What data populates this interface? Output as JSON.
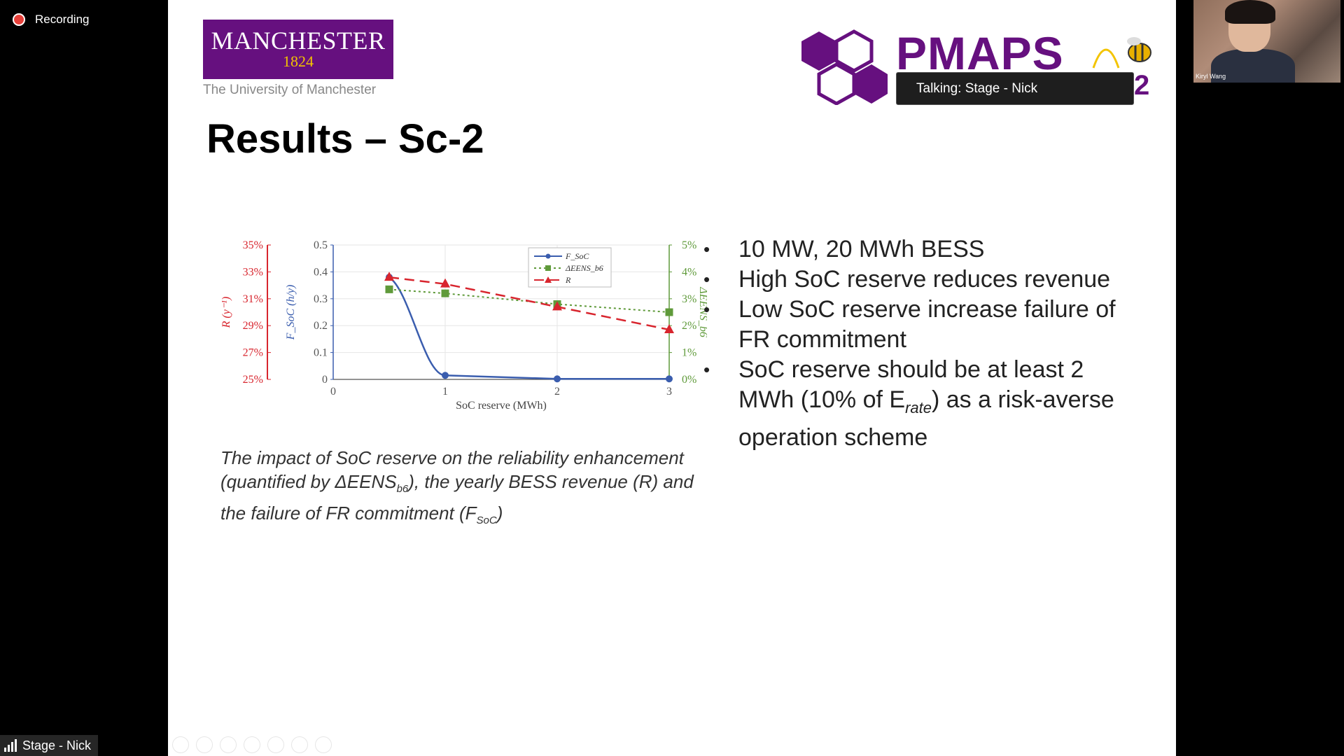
{
  "app": {
    "recording_label": "Recording",
    "speaker_label": "Stage - Nick",
    "talking_tooltip": "Talking: Stage - Nick",
    "webcam_name": "Kiryl Wang"
  },
  "slide": {
    "university_logo_name": "MANCHESTER",
    "university_logo_year": "1824",
    "university_subtitle": "The University of Manchester",
    "conference_logo": "PMAPS",
    "conference_logo_suffix": "2",
    "title": "Results – Sc-2",
    "caption_part1": "The impact of SoC reserve on the reliability enhancement (quantified by ΔEENS",
    "caption_sub1": "b6",
    "caption_part2": "), the yearly BESS revenue (R) and the failure of FR commitment (F",
    "caption_sub2": "SoC",
    "caption_part3": ")",
    "bullets": [
      {
        "text": "10 MW, 20 MWh BESS"
      },
      {
        "text": "High SoC reserve reduces revenue"
      },
      {
        "text": "Low SoC reserve increase failure of FR commitment"
      },
      {
        "text_pre": "SoC reserve should be at least 2 MWh (10% of E",
        "sub": "rate",
        "text_post": ") as a risk-averse operation scheme"
      }
    ]
  },
  "chart_data": {
    "type": "line",
    "xlabel": "SoC reserve (MWh)",
    "x_ticks": [
      "0",
      "1",
      "2",
      "3"
    ],
    "xlim": [
      0,
      3
    ],
    "axes": {
      "R": {
        "label": "R (y⁻¹)",
        "ticks": [
          "25%",
          "27%",
          "29%",
          "31%",
          "33%",
          "35%"
        ],
        "range": [
          25,
          35
        ],
        "color": "#d8252e"
      },
      "F": {
        "label": "F_SoC (h/y)",
        "ticks": [
          "0",
          "0.1",
          "0.2",
          "0.3",
          "0.4",
          "0.5"
        ],
        "range": [
          0,
          0.5
        ],
        "color": "#3a5dae"
      },
      "E": {
        "label": "ΔEENS_b6",
        "ticks": [
          "0%",
          "1%",
          "2%",
          "3%",
          "4%",
          "5%"
        ],
        "range": [
          0,
          5
        ],
        "color": "#5f9a3a"
      }
    },
    "legend": [
      "F_SoC",
      "ΔEENS_b6",
      "R"
    ],
    "legend_position": "top-right",
    "series": [
      {
        "name": "F_SoC",
        "axis": "F",
        "x": [
          0.5,
          1,
          2,
          3
        ],
        "y": [
          0.38,
          0.015,
          0.002,
          0.002
        ]
      },
      {
        "name": "ΔEENS_b6",
        "axis": "E",
        "x": [
          0.5,
          1,
          2,
          3
        ],
        "y": [
          3.35,
          3.2,
          2.8,
          2.5
        ]
      },
      {
        "name": "R",
        "axis": "R",
        "x": [
          0.5,
          1,
          2,
          3
        ],
        "y": [
          32.6,
          32.1,
          30.4,
          28.7
        ]
      }
    ]
  }
}
